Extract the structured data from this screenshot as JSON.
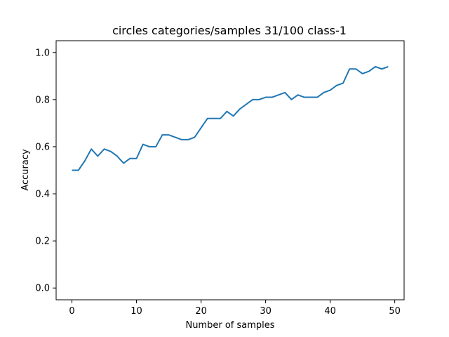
{
  "chart_data": {
    "type": "line",
    "title": "circles categories/samples 31/100 class-1",
    "xlabel": "Number of samples",
    "ylabel": "Accuracy",
    "xlim": [
      -2.45,
      51.45
    ],
    "ylim": [
      -0.05,
      1.05
    ],
    "xticks": [
      0,
      10,
      20,
      30,
      40,
      50
    ],
    "yticks": [
      0.0,
      0.2,
      0.4,
      0.6,
      0.8,
      1.0
    ],
    "xtick_labels": [
      "0",
      "10",
      "20",
      "30",
      "40",
      "50"
    ],
    "ytick_labels": [
      "0.0",
      "0.2",
      "0.4",
      "0.6",
      "0.8",
      "1.0"
    ],
    "grid": false,
    "color": "#1f77b4",
    "series": [
      {
        "x": [
          0,
          1,
          2,
          3,
          4,
          5,
          6,
          7,
          8,
          9,
          10,
          11,
          12,
          13,
          14,
          15,
          16,
          17,
          18,
          19,
          20,
          21,
          22,
          23,
          24,
          25,
          26,
          27,
          28,
          29,
          30,
          31,
          32,
          33,
          34,
          35,
          36,
          37,
          38,
          39,
          40,
          41,
          42,
          43,
          44,
          45,
          46,
          47,
          48,
          49
        ],
        "values": [
          0.5,
          0.5,
          0.54,
          0.59,
          0.56,
          0.59,
          0.58,
          0.56,
          0.53,
          0.55,
          0.55,
          0.61,
          0.6,
          0.6,
          0.65,
          0.65,
          0.64,
          0.63,
          0.63,
          0.64,
          0.68,
          0.72,
          0.72,
          0.72,
          0.75,
          0.73,
          0.76,
          0.78,
          0.8,
          0.8,
          0.81,
          0.81,
          0.82,
          0.83,
          0.8,
          0.82,
          0.81,
          0.81,
          0.81,
          0.83,
          0.84,
          0.86,
          0.87,
          0.93,
          0.93,
          0.91,
          0.92,
          0.94,
          0.93,
          0.94
        ]
      }
    ]
  }
}
